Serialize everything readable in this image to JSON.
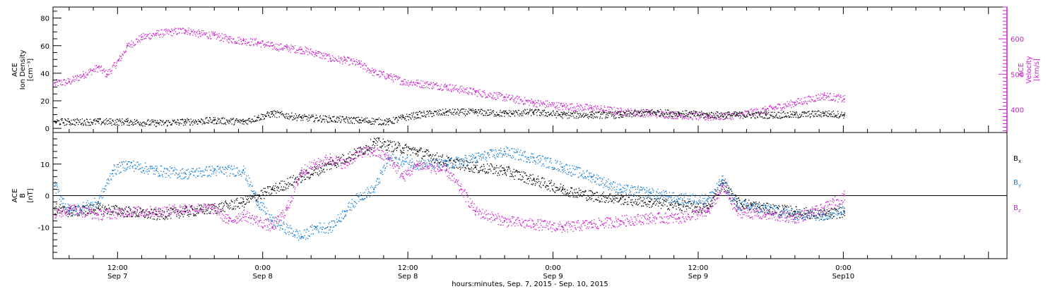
{
  "colors": {
    "black": "#000000",
    "magenta": "#cc22cc",
    "blue": "#1a7fd4"
  },
  "xaxis": {
    "title": "hours:minutes, Sep.  7, 2015 - Sep. 10, 2015",
    "ticks": [
      {
        "day": 6.6667,
        "time": "12:00",
        "date": "Sep 7"
      },
      {
        "day": 7.1667,
        "time": "0:00",
        "date": "Sep 8"
      },
      {
        "day": 7.6667,
        "time": "12:00",
        "date": "Sep 8"
      },
      {
        "day": 8.1667,
        "time": "0:00",
        "date": "Sep 9"
      },
      {
        "day": 8.6667,
        "time": "12:00",
        "date": "Sep 9"
      },
      {
        "day": 9.1667,
        "time": "0:00",
        "date": "Sep10"
      }
    ]
  },
  "top_panel": {
    "left_label": [
      "ACE",
      "Ion Density",
      "[cm⁻³]"
    ],
    "right_label": [
      "ACE",
      "Velocity",
      "[km/s]"
    ],
    "left_ticks": [
      "0",
      "20",
      "40",
      "60",
      "80"
    ],
    "right_ticks": [
      "400",
      "500",
      "600"
    ]
  },
  "bottom_panel": {
    "left_label": [
      "ACE",
      "B",
      "[nT]"
    ],
    "left_ticks": [
      "-10",
      "0",
      "10"
    ],
    "legend": [
      {
        "text": "B",
        "sub": "x",
        "color": "#000000"
      },
      {
        "text": "B",
        "sub": "y",
        "color": "#1a7fd4"
      },
      {
        "text": "B",
        "sub": "z",
        "color": "#cc22cc"
      }
    ]
  },
  "chart_data": [
    {
      "type": "scatter",
      "panel": "top",
      "xlabel": "hours:minutes, Sep.  7, 2015 - Sep. 10, 2015",
      "ylabel": "ACE Ion Density [cm⁻³]",
      "y2label": "ACE Velocity [km/s]",
      "xlim": [
        6.4444,
        9.7305
      ],
      "ylim": [
        -3,
        88
      ],
      "y2lim": [
        335,
        690
      ],
      "series": [
        {
          "axis": "left",
          "color": "#000000",
          "x": [
            6.45,
            6.5,
            6.6,
            6.7,
            6.8,
            6.9,
            7.0,
            7.1,
            7.15,
            7.2,
            7.3,
            7.4,
            7.5,
            7.6,
            7.65,
            7.7,
            7.8,
            7.9,
            8.0,
            8.1,
            8.2,
            8.3,
            8.4,
            8.5,
            8.6,
            8.7,
            8.8,
            8.9,
            9.0,
            9.1,
            9.17
          ],
          "y": [
            5,
            5,
            5,
            5,
            4,
            5,
            6,
            5,
            8,
            11,
            8,
            7,
            6,
            5,
            8,
            10,
            12,
            12,
            11,
            12,
            10,
            10,
            10,
            12,
            11,
            10,
            10,
            10,
            10,
            11,
            10
          ]
        },
        {
          "axis": "right",
          "color": "#cc22cc",
          "x": [
            6.45,
            6.5,
            6.55,
            6.6,
            6.63,
            6.67,
            6.7,
            6.75,
            6.8,
            6.85,
            6.9,
            6.95,
            7.0,
            7.05,
            7.1,
            7.15,
            7.2,
            7.25,
            7.3,
            7.35,
            7.4,
            7.45,
            7.5,
            7.55,
            7.6,
            7.65,
            7.7,
            7.8,
            7.9,
            8.0,
            8.1,
            8.2,
            8.3,
            8.4,
            8.5,
            8.6,
            8.7,
            8.8,
            8.9,
            9.0,
            9.1,
            9.17
          ],
          "y": [
            475,
            480,
            500,
            520,
            500,
            540,
            580,
            605,
            615,
            620,
            625,
            615,
            610,
            600,
            595,
            590,
            580,
            575,
            570,
            560,
            545,
            540,
            530,
            505,
            495,
            480,
            475,
            465,
            450,
            435,
            420,
            410,
            405,
            395,
            390,
            385,
            380,
            385,
            400,
            420,
            440,
            430
          ]
        }
      ]
    },
    {
      "type": "scatter",
      "panel": "bottom",
      "ylabel": "ACE B [nT]",
      "xlim": [
        6.4444,
        9.7305
      ],
      "ylim": [
        -20,
        20
      ],
      "series": [
        {
          "name": "Bx",
          "color": "#000000",
          "x": [
            6.45,
            6.5,
            6.6,
            6.7,
            6.8,
            6.9,
            7.0,
            7.1,
            7.2,
            7.3,
            7.4,
            7.5,
            7.55,
            7.6,
            7.65,
            7.7,
            7.8,
            7.9,
            8.0,
            8.1,
            8.2,
            8.3,
            8.4,
            8.5,
            8.6,
            8.7,
            8.75,
            8.8,
            8.85,
            8.9,
            9.0,
            9.1,
            9.17
          ],
          "y": [
            -4,
            -5,
            -4,
            -5,
            -6,
            -5,
            -4,
            -2,
            2,
            6,
            10,
            14,
            17,
            16,
            15,
            14,
            11,
            9,
            8,
            5,
            2,
            0,
            -1,
            -2,
            -3,
            -4,
            4,
            -2,
            -3,
            -4,
            -5,
            -6,
            -5
          ]
        },
        {
          "name": "By",
          "color": "#1a7fd4",
          "x": [
            6.45,
            6.5,
            6.6,
            6.65,
            6.7,
            6.8,
            6.9,
            7.0,
            7.1,
            7.15,
            7.2,
            7.3,
            7.35,
            7.4,
            7.45,
            7.5,
            7.55,
            7.6,
            7.65,
            7.7,
            7.8,
            7.9,
            8.0,
            8.1,
            8.2,
            8.3,
            8.4,
            8.5,
            8.6,
            8.7,
            8.75,
            8.8,
            8.9,
            9.0,
            9.1,
            9.17
          ],
          "y": [
            3,
            -5,
            -2,
            8,
            10,
            8,
            7,
            8,
            8,
            -2,
            -8,
            -13,
            -10,
            -10,
            -5,
            0,
            2,
            12,
            11,
            10,
            10,
            12,
            14,
            12,
            9,
            6,
            2,
            1,
            -1,
            -1,
            5,
            -3,
            -4,
            -6,
            -6,
            -4
          ]
        },
        {
          "name": "Bz",
          "color": "#cc22cc",
          "x": [
            6.45,
            6.5,
            6.6,
            6.7,
            6.8,
            6.9,
            7.0,
            7.05,
            7.1,
            7.2,
            7.25,
            7.3,
            7.35,
            7.4,
            7.45,
            7.5,
            7.55,
            7.6,
            7.65,
            7.7,
            7.8,
            7.85,
            7.9,
            8.0,
            8.1,
            8.2,
            8.3,
            8.4,
            8.5,
            8.6,
            8.7,
            8.75,
            8.8,
            8.9,
            9.0,
            9.1,
            9.17
          ],
          "y": [
            -6,
            -4,
            -6,
            -5,
            -5,
            -4,
            -4,
            -8,
            -6,
            -10,
            -4,
            8,
            10,
            12,
            10,
            14,
            14,
            12,
            6,
            10,
            8,
            2,
            -5,
            -8,
            -9,
            -10,
            -9,
            -8,
            -7,
            -7,
            -5,
            3,
            -5,
            -6,
            -7,
            -4,
            0
          ]
        }
      ]
    }
  ]
}
